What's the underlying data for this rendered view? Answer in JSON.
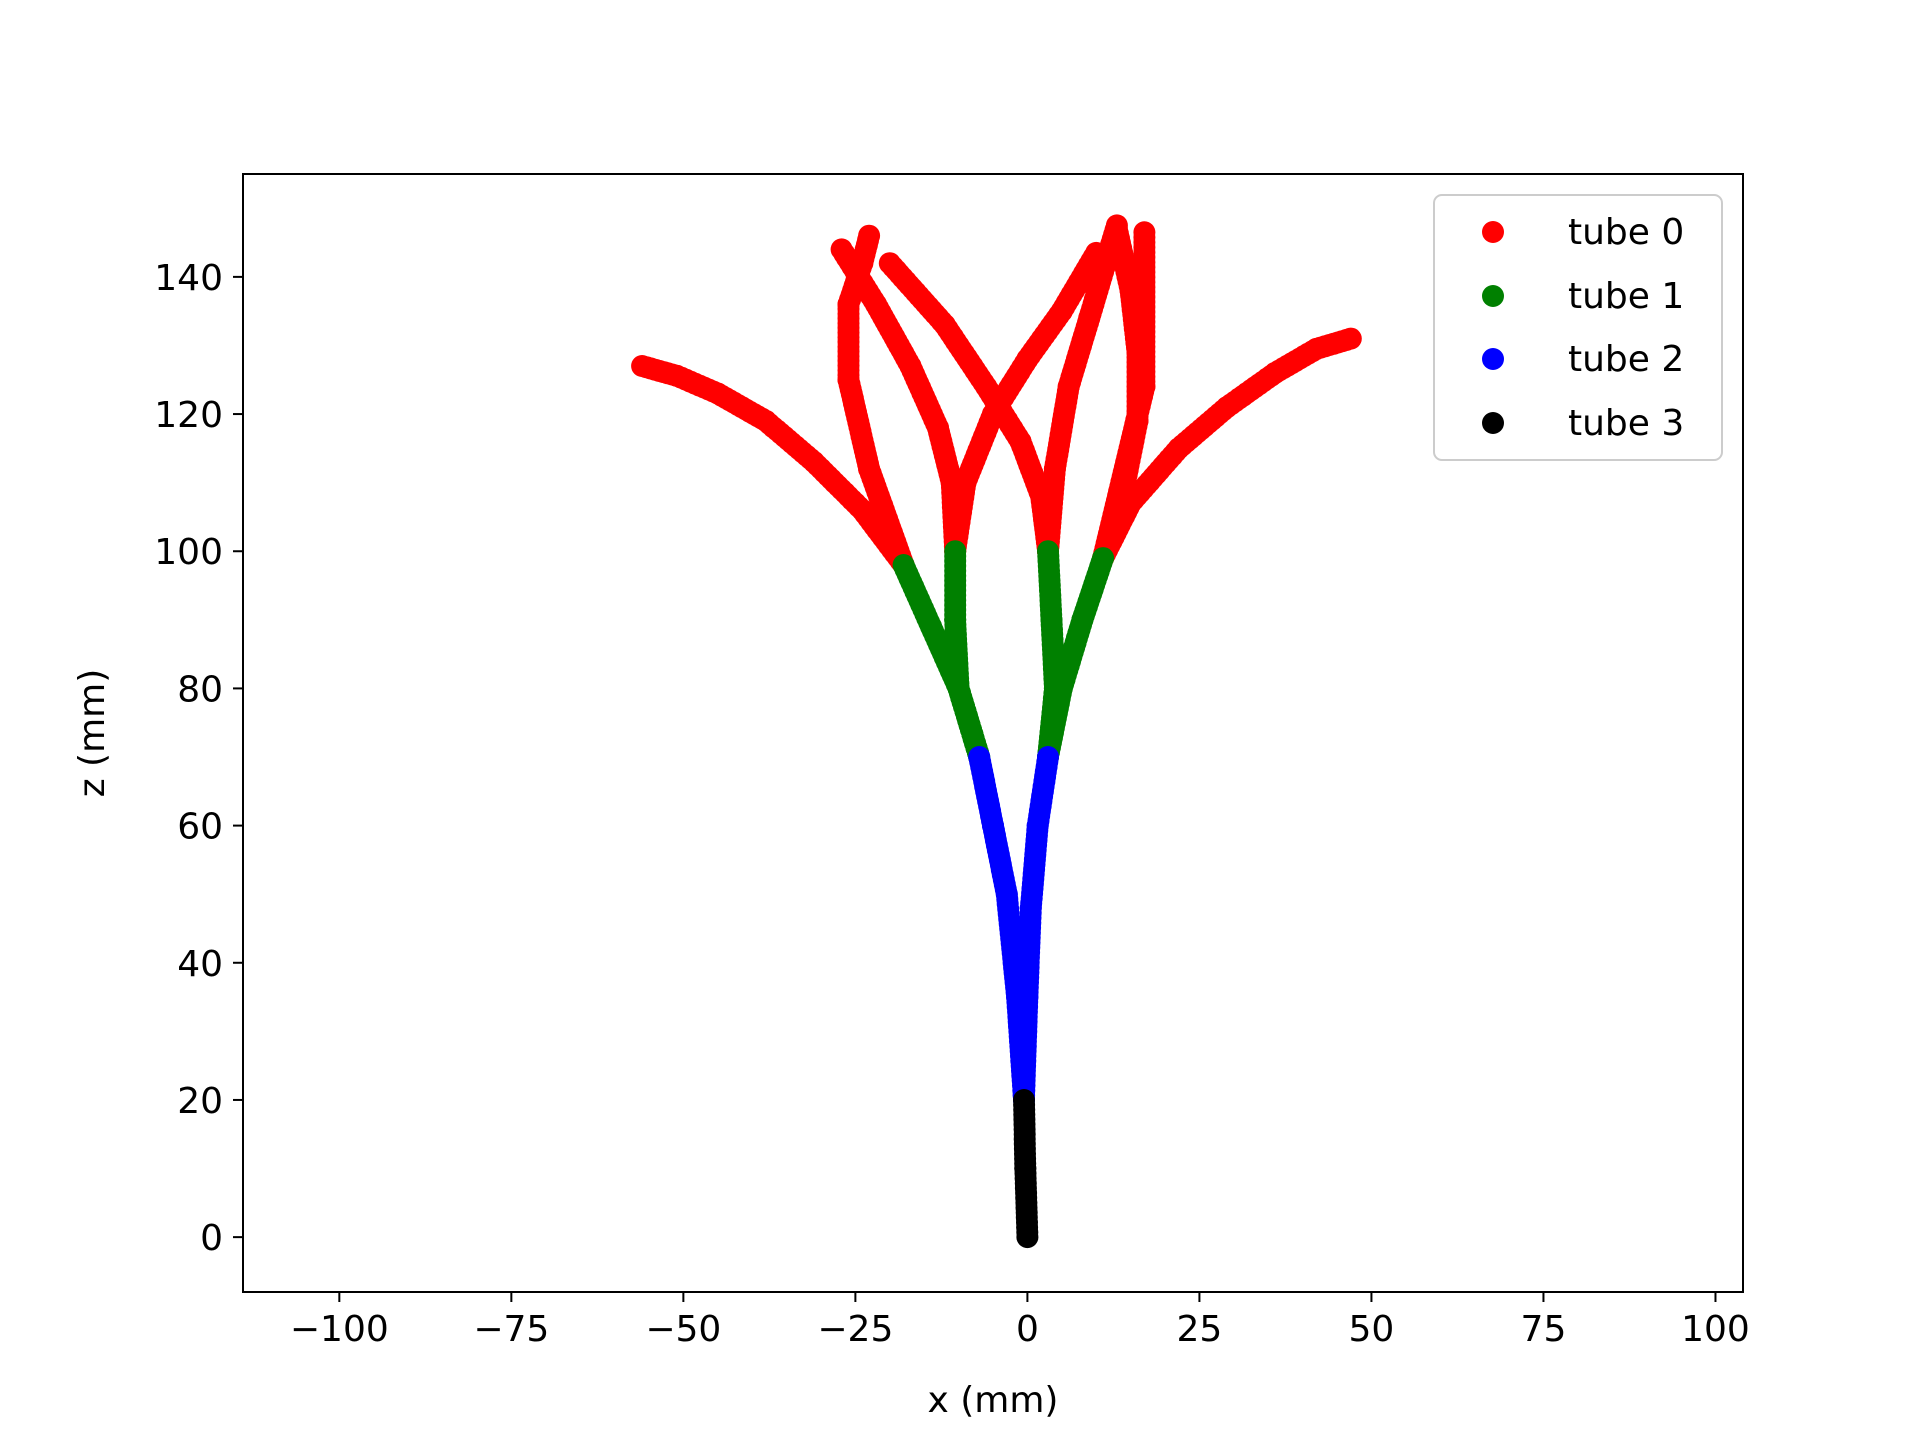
{
  "chart_data": {
    "type": "scatter",
    "title": "",
    "xlabel": "x (mm)",
    "ylabel": "z (mm)",
    "xlim": [
      -114,
      104
    ],
    "ylim": [
      -8,
      155
    ],
    "x_ticks": [
      -100,
      -75,
      -50,
      -25,
      0,
      25,
      50,
      75,
      100
    ],
    "x_tick_labels": [
      "−100",
      "−75",
      "−50",
      "−25",
      "0",
      "25",
      "50",
      "75",
      "100"
    ],
    "y_ticks": [
      0,
      20,
      40,
      60,
      80,
      100,
      120,
      140
    ],
    "y_tick_labels": [
      "0",
      "20",
      "40",
      "60",
      "80",
      "100",
      "120",
      "140"
    ],
    "grid": false,
    "legend_position": "top-right",
    "series": [
      {
        "name": "tube 0",
        "color": "#ff0000",
        "branches": [
          [
            [
              -18,
              98
            ],
            [
              -24,
              106
            ],
            [
              -31,
              113
            ],
            [
              -38,
              119
            ],
            [
              -45,
              123
            ],
            [
              -51,
              125.6
            ],
            [
              -56,
              127
            ]
          ],
          [
            [
              -18,
              98
            ],
            [
              -23,
              112
            ],
            [
              -26,
              125
            ],
            [
              -26,
              136
            ],
            [
              -24,
              142
            ],
            [
              -23,
              146
            ]
          ],
          [
            [
              -10.5,
              100
            ],
            [
              -11,
              110
            ],
            [
              -13,
              118
            ],
            [
              -17,
              127
            ],
            [
              -22,
              136
            ],
            [
              -27,
              144
            ]
          ],
          [
            [
              -10.5,
              100
            ],
            [
              -9,
              110
            ],
            [
              -5,
              120
            ],
            [
              0,
              128
            ],
            [
              5,
              135
            ],
            [
              10,
              143.5
            ]
          ],
          [
            [
              3,
              100
            ],
            [
              2,
              108
            ],
            [
              -1,
              116
            ],
            [
              -6,
              124
            ],
            [
              -12,
              133
            ],
            [
              -20,
              142
            ]
          ],
          [
            [
              3,
              100
            ],
            [
              4,
              112
            ],
            [
              6,
              124
            ],
            [
              9,
              134
            ],
            [
              13,
              147.5
            ]
          ],
          [
            [
              11,
              99
            ],
            [
              14,
              109
            ],
            [
              16,
              119
            ],
            [
              16,
              129
            ],
            [
              15,
              138
            ],
            [
              13,
              147
            ]
          ],
          [
            [
              11,
              99
            ],
            [
              15,
              107
            ],
            [
              22,
              115
            ],
            [
              29,
              121
            ],
            [
              36,
              126
            ],
            [
              42,
              129.5
            ],
            [
              47,
              131
            ]
          ],
          [
            [
              11,
              99
            ],
            [
              17,
              124
            ],
            [
              17,
              146.5
            ]
          ]
        ]
      },
      {
        "name": "tube 1",
        "color": "#008000",
        "branches": [
          [
            [
              -7,
              70
            ],
            [
              -10,
              80
            ],
            [
              -14,
              89
            ],
            [
              -18,
              98
            ]
          ],
          [
            [
              -7,
              70
            ],
            [
              -10,
              80
            ],
            [
              -10.5,
              90
            ],
            [
              -10.5,
              100
            ]
          ],
          [
            [
              3,
              70
            ],
            [
              4,
              80
            ],
            [
              3.5,
              90
            ],
            [
              3,
              100
            ]
          ],
          [
            [
              3,
              70
            ],
            [
              5,
              80
            ],
            [
              8,
              90
            ],
            [
              11,
              99
            ]
          ]
        ]
      },
      {
        "name": "tube 2",
        "color": "#0000ff",
        "branches": [
          [
            [
              -0.5,
              20
            ],
            [
              -1.5,
              35
            ],
            [
              -3,
              50
            ],
            [
              -5,
              60
            ],
            [
              -7,
              70
            ]
          ],
          [
            [
              -0.5,
              20
            ],
            [
              0,
              35
            ],
            [
              0.5,
              48
            ],
            [
              1.5,
              60
            ],
            [
              3,
              70
            ]
          ]
        ]
      },
      {
        "name": "tube 3",
        "color": "#000000",
        "branches": [
          [
            [
              0,
              0
            ],
            [
              -0.3,
              10
            ],
            [
              -0.5,
              20
            ]
          ]
        ]
      }
    ]
  },
  "legend": {
    "items": [
      {
        "label": "tube 0",
        "color": "#ff0000"
      },
      {
        "label": "tube 1",
        "color": "#008000"
      },
      {
        "label": "tube 2",
        "color": "#0000ff"
      },
      {
        "label": "tube 3",
        "color": "#000000"
      }
    ]
  }
}
